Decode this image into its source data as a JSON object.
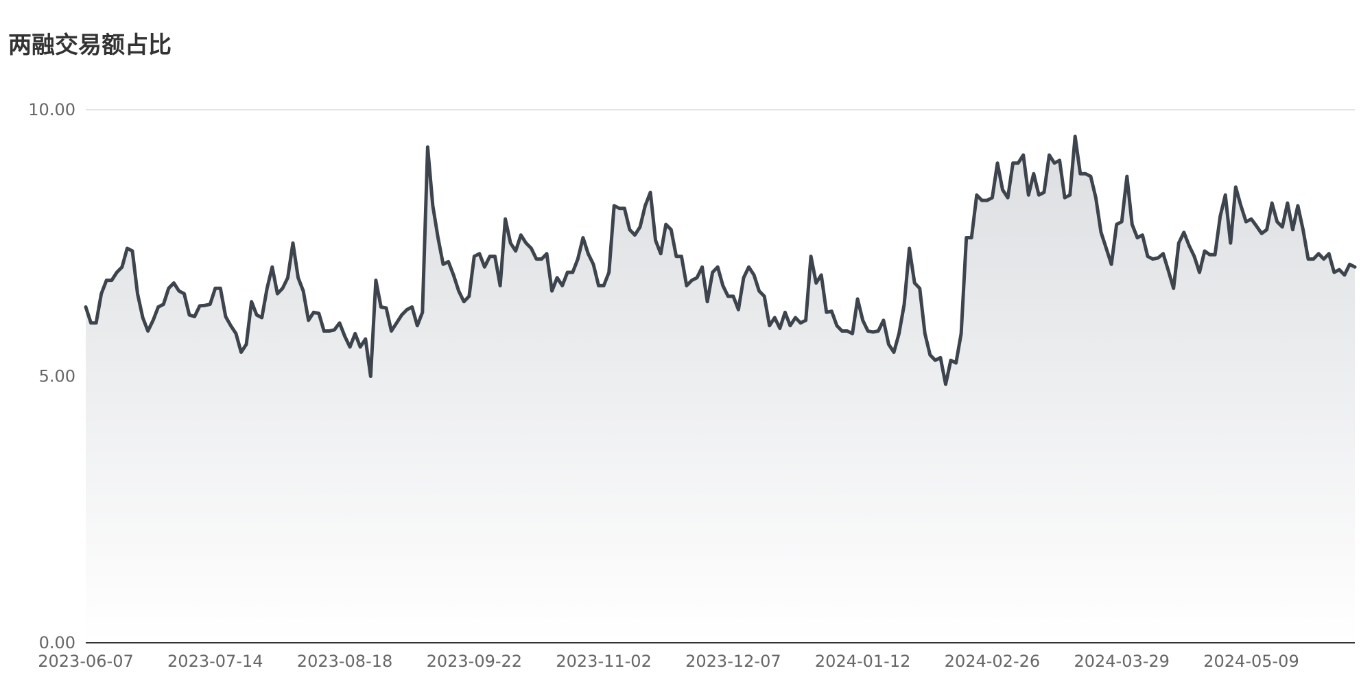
{
  "chart_data": {
    "type": "area",
    "title": "两融交易额占比",
    "xlabel": "",
    "ylabel": "",
    "ylim": [
      0,
      10
    ],
    "y_ticks": [
      "0.00",
      "5.00",
      "10.00"
    ],
    "x_ticks": [
      "2023-06-07",
      "2023-07-14",
      "2023-08-18",
      "2023-09-22",
      "2023-11-02",
      "2023-12-07",
      "2024-01-12",
      "2024-02-26",
      "2024-03-29",
      "2024-05-09"
    ],
    "x_tick_index": [
      0,
      25,
      50,
      75,
      100,
      125,
      150,
      175,
      200,
      225
    ],
    "grid": true,
    "legend": "none",
    "colors": {
      "line": "#3d444d",
      "fill_top": "#dcdee1",
      "fill_bottom": "#ffffff",
      "grid": "#d9dce1",
      "axis": "#333333",
      "text": "#666666",
      "title": "#333333"
    },
    "series": [
      {
        "values": [
          6.3,
          6.0,
          6.0,
          6.55,
          6.8,
          6.8,
          6.95,
          7.05,
          7.4,
          7.35,
          6.55,
          6.1,
          5.85,
          6.05,
          6.3,
          6.35,
          6.65,
          6.75,
          6.6,
          6.55,
          6.15,
          6.12,
          6.32,
          6.33,
          6.35,
          6.65,
          6.65,
          6.12,
          5.95,
          5.8,
          5.45,
          5.6,
          6.4,
          6.15,
          6.1,
          6.65,
          7.05,
          6.55,
          6.65,
          6.85,
          7.5,
          6.85,
          6.6,
          6.05,
          6.2,
          6.18,
          5.85,
          5.85,
          5.87,
          6.0,
          5.75,
          5.55,
          5.8,
          5.55,
          5.7,
          5.0,
          6.8,
          6.3,
          6.28,
          5.85,
          6.0,
          6.15,
          6.25,
          6.3,
          5.95,
          6.2,
          9.3,
          8.2,
          7.6,
          7.1,
          7.15,
          6.9,
          6.6,
          6.4,
          6.5,
          7.25,
          7.3,
          7.05,
          7.25,
          7.25,
          6.7,
          7.95,
          7.5,
          7.35,
          7.65,
          7.5,
          7.4,
          7.2,
          7.2,
          7.3,
          6.6,
          6.85,
          6.7,
          6.95,
          6.95,
          7.2,
          7.6,
          7.3,
          7.1,
          6.7,
          6.7,
          6.95,
          8.2,
          8.15,
          8.15,
          7.75,
          7.65,
          7.8,
          8.2,
          8.45,
          7.55,
          7.3,
          7.85,
          7.75,
          7.25,
          7.25,
          6.7,
          6.8,
          6.85,
          7.05,
          6.4,
          6.95,
          7.05,
          6.7,
          6.5,
          6.5,
          6.25,
          6.85,
          7.05,
          6.9,
          6.6,
          6.5,
          5.95,
          6.1,
          5.9,
          6.2,
          5.95,
          6.1,
          6.0,
          6.05,
          7.25,
          6.75,
          6.9,
          6.2,
          6.22,
          5.95,
          5.85,
          5.85,
          5.8,
          6.45,
          6.05,
          5.85,
          5.83,
          5.85,
          6.05,
          5.6,
          5.45,
          5.8,
          6.35,
          7.4,
          6.75,
          6.65,
          5.8,
          5.4,
          5.3,
          5.35,
          4.85,
          5.3,
          5.25,
          5.8,
          7.6,
          7.6,
          8.4,
          8.3,
          8.3,
          8.35,
          9.0,
          8.5,
          8.35,
          9.0,
          9.0,
          9.15,
          8.4,
          8.8,
          8.4,
          8.45,
          9.15,
          9.0,
          9.05,
          8.35,
          8.4,
          9.5,
          8.8,
          8.8,
          8.75,
          8.35,
          7.7,
          7.4,
          7.1,
          7.85,
          7.9,
          8.75,
          7.85,
          7.6,
          7.65,
          7.25,
          7.2,
          7.22,
          7.3,
          6.98,
          6.65,
          7.5,
          7.7,
          7.45,
          7.25,
          6.95,
          7.35,
          7.28,
          7.28,
          8.0,
          8.4,
          7.5,
          8.55,
          8.2,
          7.9,
          7.95,
          7.82,
          7.68,
          7.75,
          8.25,
          7.9,
          7.8,
          8.25,
          7.75,
          8.2,
          7.75,
          7.2,
          7.2,
          7.3,
          7.2,
          7.3,
          6.95,
          7.0,
          6.9,
          7.1,
          7.05
        ]
      }
    ]
  }
}
